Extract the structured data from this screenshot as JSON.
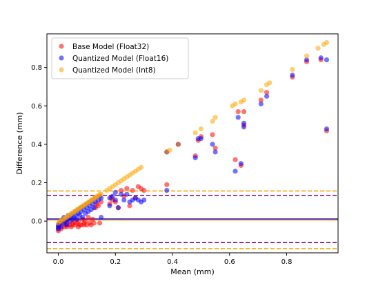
{
  "chart_data": {
    "type": "scatter",
    "xlabel": "Mean (mm)",
    "ylabel": "Difference (mm)",
    "xlim": [
      -0.04,
      0.98
    ],
    "ylim": [
      -0.165,
      0.975
    ],
    "xticks": [
      0.0,
      0.2,
      0.4,
      0.6,
      0.8
    ],
    "xtick_labels": [
      "0.0",
      "0.2",
      "0.4",
      "0.6",
      "0.8"
    ],
    "yticks": [
      0.0,
      0.2,
      0.4,
      0.6,
      0.8
    ],
    "ytick_labels": [
      "0.0",
      "0.2",
      "0.4",
      "0.6",
      "0.8"
    ],
    "grid": false,
    "legend": {
      "position": "top-left"
    },
    "series": [
      {
        "name": "Base Model (Float32)",
        "color": "#ff0000",
        "points": [
          [
            0.0,
            -0.05
          ],
          [
            0.0,
            -0.04
          ],
          [
            0.0,
            -0.03
          ],
          [
            0.005,
            -0.02
          ],
          [
            0.01,
            -0.01
          ],
          [
            0.01,
            -0.04
          ],
          [
            0.02,
            -0.03
          ],
          [
            0.02,
            0.0
          ],
          [
            0.025,
            -0.02
          ],
          [
            0.03,
            -0.03
          ],
          [
            0.03,
            -0.01
          ],
          [
            0.035,
            0.01
          ],
          [
            0.04,
            -0.02
          ],
          [
            0.045,
            -0.03
          ],
          [
            0.05,
            -0.01
          ],
          [
            0.05,
            -0.02
          ],
          [
            0.055,
            0.0
          ],
          [
            0.06,
            -0.02
          ],
          [
            0.065,
            -0.01
          ],
          [
            0.07,
            -0.03
          ],
          [
            0.07,
            0.0
          ],
          [
            0.075,
            -0.02
          ],
          [
            0.08,
            -0.02
          ],
          [
            0.085,
            0.01
          ],
          [
            0.09,
            -0.01
          ],
          [
            0.09,
            -0.02
          ],
          [
            0.095,
            0.0
          ],
          [
            0.1,
            -0.02
          ],
          [
            0.105,
            0.02
          ],
          [
            0.11,
            -0.01
          ],
          [
            0.115,
            -0.02
          ],
          [
            0.12,
            0.01
          ],
          [
            0.125,
            -0.01
          ],
          [
            0.13,
            0.07
          ],
          [
            0.135,
            0.09
          ],
          [
            0.14,
            0.08
          ],
          [
            0.145,
            -0.01
          ],
          [
            0.15,
            0.1
          ],
          [
            0.18,
            0.09
          ],
          [
            0.185,
            0.12
          ],
          [
            0.19,
            0.11
          ],
          [
            0.2,
            0.1
          ],
          [
            0.21,
            0.07
          ],
          [
            0.22,
            0.16
          ],
          [
            0.23,
            0.13
          ],
          [
            0.24,
            0.17
          ],
          [
            0.25,
            0.08
          ],
          [
            0.26,
            0.16
          ],
          [
            0.27,
            0.12
          ],
          [
            0.28,
            0.18
          ],
          [
            0.29,
            0.17
          ],
          [
            0.3,
            0.16
          ],
          [
            0.38,
            0.19
          ],
          [
            0.38,
            0.36
          ],
          [
            0.42,
            0.4
          ],
          [
            0.48,
            0.34
          ],
          [
            0.49,
            0.42
          ],
          [
            0.5,
            0.44
          ],
          [
            0.54,
            0.45
          ],
          [
            0.55,
            0.38
          ],
          [
            0.62,
            0.32
          ],
          [
            0.63,
            0.57
          ],
          [
            0.64,
            0.29
          ],
          [
            0.65,
            0.5
          ],
          [
            0.65,
            0.57
          ],
          [
            0.71,
            0.63
          ],
          [
            0.73,
            0.67
          ],
          [
            0.82,
            0.75
          ],
          [
            0.87,
            0.83
          ],
          [
            0.92,
            0.84
          ],
          [
            0.94,
            0.47
          ]
        ]
      },
      {
        "name": "Quantized Model (Float16)",
        "color": "#0000ff",
        "points": [
          [
            0.0,
            -0.04
          ],
          [
            0.0,
            -0.03
          ],
          [
            0.0,
            -0.02
          ],
          [
            0.005,
            -0.01
          ],
          [
            0.01,
            0.0
          ],
          [
            0.01,
            -0.03
          ],
          [
            0.015,
            0.01
          ],
          [
            0.02,
            -0.01
          ],
          [
            0.02,
            0.02
          ],
          [
            0.025,
            0.0
          ],
          [
            0.03,
            0.01
          ],
          [
            0.03,
            -0.02
          ],
          [
            0.035,
            0.03
          ],
          [
            0.04,
            0.02
          ],
          [
            0.04,
            0.0
          ],
          [
            0.045,
            0.03
          ],
          [
            0.05,
            0.04
          ],
          [
            0.05,
            0.01
          ],
          [
            0.055,
            0.02
          ],
          [
            0.06,
            0.05
          ],
          [
            0.06,
            0.03
          ],
          [
            0.065,
            0.01
          ],
          [
            0.07,
            0.04
          ],
          [
            0.07,
            0.06
          ],
          [
            0.075,
            0.03
          ],
          [
            0.08,
            0.05
          ],
          [
            0.08,
            0.07
          ],
          [
            0.085,
            0.02
          ],
          [
            0.09,
            0.06
          ],
          [
            0.09,
            0.08
          ],
          [
            0.095,
            0.04
          ],
          [
            0.1,
            0.07
          ],
          [
            0.1,
            0.09
          ],
          [
            0.105,
            0.05
          ],
          [
            0.11,
            0.08
          ],
          [
            0.11,
            0.1
          ],
          [
            0.115,
            0.06
          ],
          [
            0.12,
            0.09
          ],
          [
            0.12,
            0.11
          ],
          [
            0.125,
            0.07
          ],
          [
            0.13,
            0.1
          ],
          [
            0.13,
            0.12
          ],
          [
            0.14,
            0.11
          ],
          [
            0.145,
            0.13
          ],
          [
            0.15,
            0.12
          ],
          [
            0.15,
            0.02
          ],
          [
            0.18,
            0.12
          ],
          [
            0.18,
            0.08
          ],
          [
            0.19,
            0.13
          ],
          [
            0.2,
            0.11
          ],
          [
            0.2,
            0.15
          ],
          [
            0.21,
            0.07
          ],
          [
            0.22,
            0.14
          ],
          [
            0.23,
            0.11
          ],
          [
            0.24,
            0.14
          ],
          [
            0.25,
            0.1
          ],
          [
            0.26,
            0.11
          ],
          [
            0.27,
            0.12
          ],
          [
            0.28,
            0.11
          ],
          [
            0.29,
            0.1
          ],
          [
            0.3,
            0.11
          ],
          [
            0.38,
            0.16
          ],
          [
            0.38,
            0.36
          ],
          [
            0.42,
            0.4
          ],
          [
            0.48,
            0.33
          ],
          [
            0.49,
            0.43
          ],
          [
            0.5,
            0.43
          ],
          [
            0.54,
            0.4
          ],
          [
            0.55,
            0.36
          ],
          [
            0.62,
            0.26
          ],
          [
            0.63,
            0.54
          ],
          [
            0.64,
            0.3
          ],
          [
            0.65,
            0.49
          ],
          [
            0.65,
            0.51
          ],
          [
            0.71,
            0.61
          ],
          [
            0.73,
            0.65
          ],
          [
            0.82,
            0.76
          ],
          [
            0.87,
            0.84
          ],
          [
            0.92,
            0.85
          ],
          [
            0.94,
            0.84
          ],
          [
            0.94,
            0.48
          ]
        ]
      },
      {
        "name": "Quantized Model (Int8)",
        "color": "#ffa500",
        "points": [
          [
            0.0,
            -0.01
          ],
          [
            0.005,
            0.0
          ],
          [
            0.01,
            0.0
          ],
          [
            0.015,
            0.01
          ],
          [
            0.02,
            0.01
          ],
          [
            0.025,
            0.02
          ],
          [
            0.03,
            0.02
          ],
          [
            0.035,
            0.03
          ],
          [
            0.04,
            0.03
          ],
          [
            0.045,
            0.04
          ],
          [
            0.05,
            0.04
          ],
          [
            0.055,
            0.05
          ],
          [
            0.06,
            0.05
          ],
          [
            0.065,
            0.06
          ],
          [
            0.07,
            0.06
          ],
          [
            0.075,
            0.07
          ],
          [
            0.08,
            0.07
          ],
          [
            0.085,
            0.08
          ],
          [
            0.09,
            0.08
          ],
          [
            0.095,
            0.09
          ],
          [
            0.1,
            0.09
          ],
          [
            0.105,
            0.1
          ],
          [
            0.11,
            0.1
          ],
          [
            0.115,
            0.11
          ],
          [
            0.12,
            0.11
          ],
          [
            0.125,
            0.12
          ],
          [
            0.13,
            0.12
          ],
          [
            0.135,
            0.13
          ],
          [
            0.14,
            0.13
          ],
          [
            0.145,
            0.14
          ],
          [
            0.15,
            0.14
          ],
          [
            0.17,
            0.16
          ],
          [
            0.18,
            0.17
          ],
          [
            0.19,
            0.18
          ],
          [
            0.2,
            0.19
          ],
          [
            0.21,
            0.2
          ],
          [
            0.22,
            0.21
          ],
          [
            0.23,
            0.22
          ],
          [
            0.24,
            0.23
          ],
          [
            0.25,
            0.24
          ],
          [
            0.26,
            0.25
          ],
          [
            0.27,
            0.26
          ],
          [
            0.28,
            0.27
          ],
          [
            0.29,
            0.28
          ],
          [
            0.38,
            0.36
          ],
          [
            0.39,
            0.37
          ],
          [
            0.42,
            0.4
          ],
          [
            0.48,
            0.46
          ],
          [
            0.5,
            0.48
          ],
          [
            0.54,
            0.52
          ],
          [
            0.55,
            0.54
          ],
          [
            0.61,
            0.6
          ],
          [
            0.62,
            0.61
          ],
          [
            0.64,
            0.62
          ],
          [
            0.65,
            0.63
          ],
          [
            0.71,
            0.68
          ],
          [
            0.73,
            0.71
          ],
          [
            0.74,
            0.72
          ],
          [
            0.82,
            0.79
          ],
          [
            0.87,
            0.86
          ],
          [
            0.91,
            0.9
          ],
          [
            0.93,
            0.92
          ],
          [
            0.94,
            0.93
          ]
        ]
      }
    ],
    "reference_lines": [
      {
        "y": 0.009,
        "color": "#ff0000",
        "style": "solid"
      },
      {
        "y": 0.011,
        "color": "#0000ff",
        "style": "solid"
      },
      {
        "y": 0.006,
        "color": "#ffa500",
        "style": "solid"
      },
      {
        "y": 0.133,
        "color": "#800080",
        "style": "dashed"
      },
      {
        "y": -0.111,
        "color": "#800080",
        "style": "dashed"
      },
      {
        "y": 0.157,
        "color": "#ffa500",
        "style": "dashed"
      },
      {
        "y": -0.143,
        "color": "#ffa500",
        "style": "dashed"
      }
    ]
  }
}
